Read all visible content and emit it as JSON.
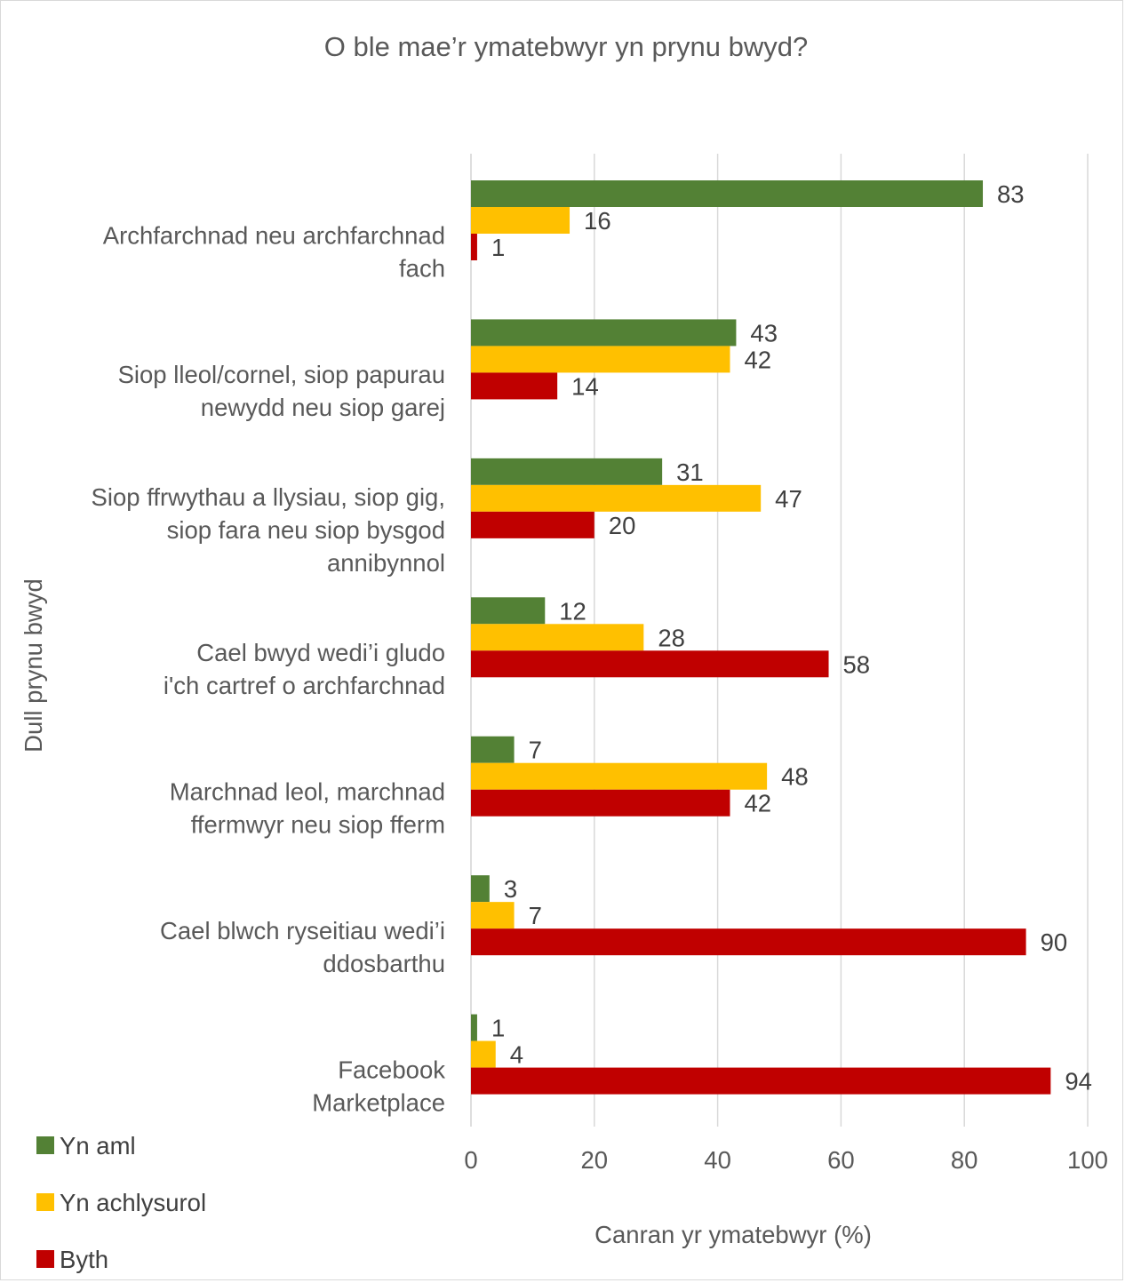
{
  "chart_data": {
    "type": "bar",
    "orientation": "horizontal",
    "title": "O ble mae’r ymatebwyr yn prynu bwyd?",
    "xlabel": "Canran yr ymatebwyr (%)",
    "ylabel": "Dull prynu bwyd",
    "xlim": [
      0,
      100
    ],
    "xticks": [
      "0",
      "20",
      "40",
      "60",
      "80",
      "100"
    ],
    "grid": "vertical",
    "legend_position": "bottom-left",
    "categories": [
      [
        "Archfarchnad neu archfarchnad",
        "fach"
      ],
      [
        "Siop lleol/cornel, siop papurau",
        "newydd neu siop garej"
      ],
      [
        "Siop ffrwythau a llysiau, siop gig,",
        "siop fara neu siop bysgod",
        "annibynnol"
      ],
      [
        "Cael bwyd wedi’i gludo",
        "i'ch cartref o archfarchnad"
      ],
      [
        "Marchnad leol, marchnad",
        "ffermwyr neu siop fferm"
      ],
      [
        "Cael blwch ryseitiau wedi’i",
        "ddosbarthu"
      ],
      [
        "Facebook",
        "Marketplace"
      ]
    ],
    "series": [
      {
        "name": "Yn aml",
        "color": "#538135",
        "values": [
          83,
          43,
          31,
          12,
          7,
          3,
          1
        ]
      },
      {
        "name": "Yn achlysurol",
        "color": "#ffc000",
        "values": [
          16,
          42,
          47,
          28,
          48,
          7,
          4
        ]
      },
      {
        "name": "Byth",
        "color": "#c00000",
        "values": [
          1,
          14,
          20,
          58,
          42,
          90,
          94
        ]
      }
    ]
  }
}
